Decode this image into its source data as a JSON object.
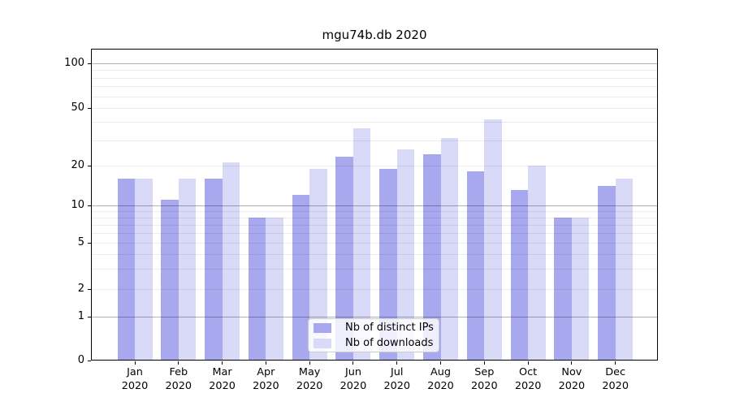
{
  "chart_data": {
    "type": "bar",
    "title": "mgu74b.db 2020",
    "months": [
      "Jan",
      "Feb",
      "Mar",
      "Apr",
      "May",
      "Jun",
      "Jul",
      "Aug",
      "Sep",
      "Oct",
      "Nov",
      "Dec"
    ],
    "year": "2020",
    "categories": [
      "Jan 2020",
      "Feb 2020",
      "Mar 2020",
      "Apr 2020",
      "May 2020",
      "Jun 2020",
      "Jul 2020",
      "Aug 2020",
      "Sep 2020",
      "Oct 2020",
      "Nov 2020",
      "Dec 2020"
    ],
    "series": [
      {
        "name": "Nb of distinct IPs",
        "color": "#a8a8ef",
        "values": [
          16,
          11,
          16,
          8,
          12,
          23,
          19,
          24,
          18,
          13,
          8,
          14
        ]
      },
      {
        "name": "Nb of downloads",
        "color": "#d9d9f8",
        "values": [
          16,
          16,
          21,
          8,
          19,
          36,
          26,
          31,
          42,
          20,
          8,
          16
        ]
      }
    ],
    "y_axis": {
      "scale": "symlog",
      "ticks": [
        0,
        1,
        2,
        5,
        10,
        20,
        50,
        100
      ],
      "tick_labels": [
        "0",
        "1",
        "2",
        "5",
        "10",
        "20",
        "50",
        "100"
      ],
      "minor_gridlines": [
        3,
        4,
        6,
        7,
        8,
        9,
        30,
        40,
        60,
        70,
        80,
        90
      ],
      "ylim": [
        0,
        130
      ]
    },
    "grid": true,
    "legend": {
      "position": "lower center",
      "items": [
        "Nb of distinct IPs",
        "Nb of downloads"
      ]
    }
  }
}
